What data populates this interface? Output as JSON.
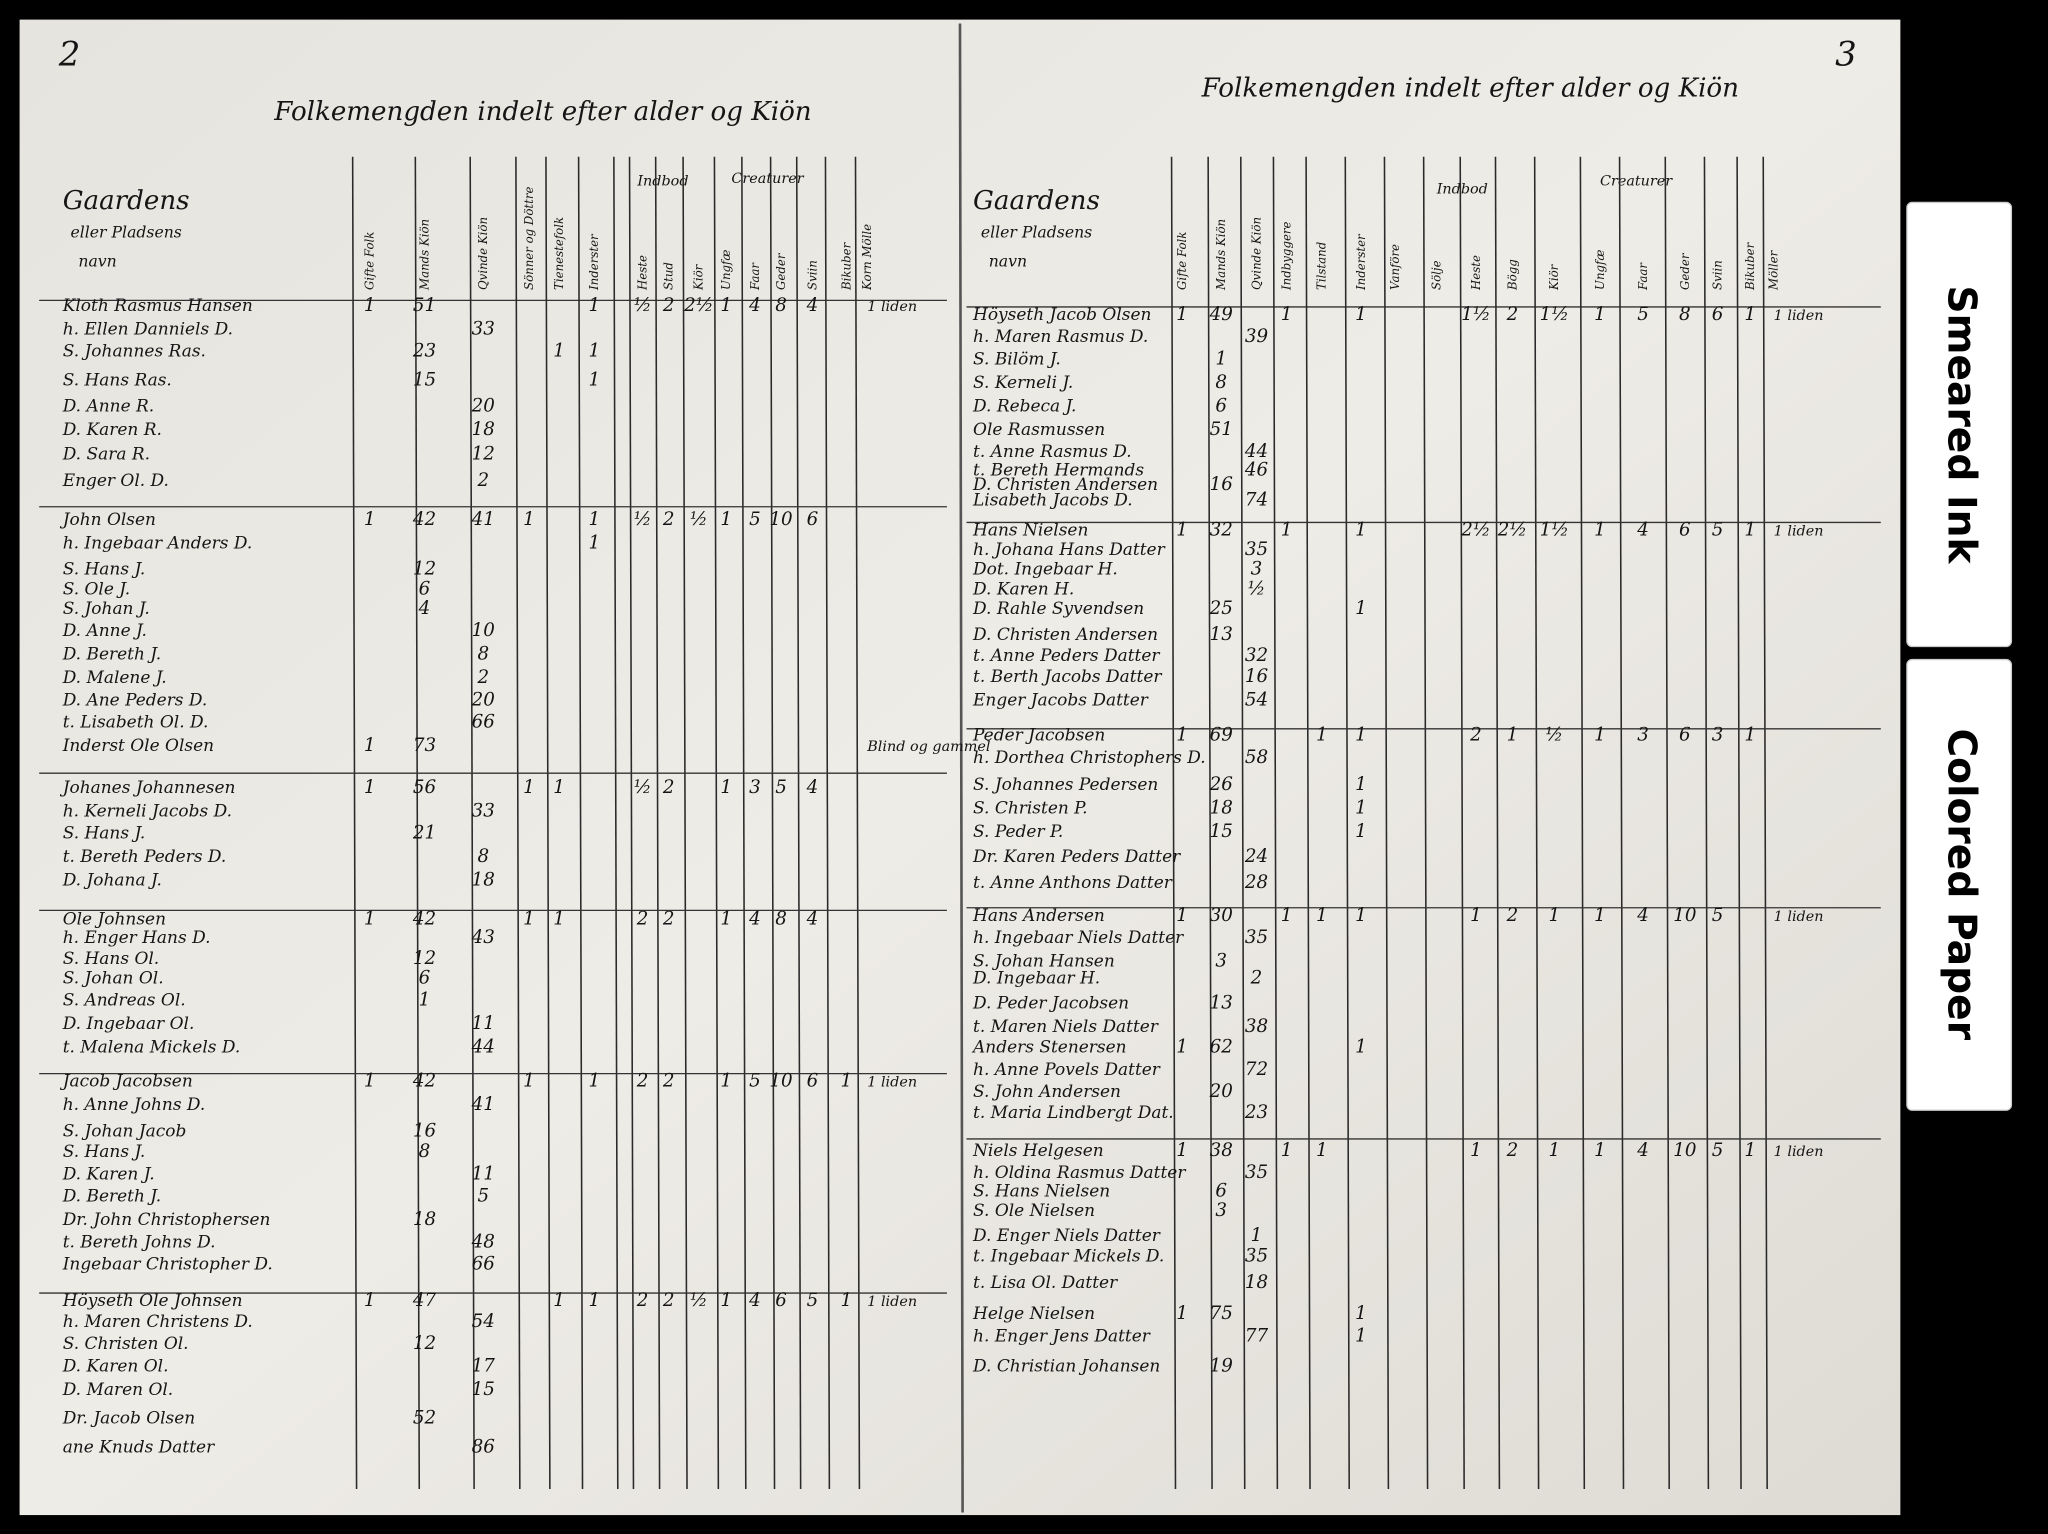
{
  "left_page": {
    "page_number": "2",
    "title": "Folkemengden indelt efter alder og Kiön",
    "groups": {
      "indbod": "Indbod",
      "creaturer": "Creaturer"
    },
    "columns": {
      "name": [
        "Gaardens",
        "eller Pladsens",
        "navn"
      ],
      "g": "Gifte Folk",
      "m": "Mands Kiön",
      "q": "Qvinde Kiön",
      "s": "Sönner og Döttre",
      "t": "Tienestefolk",
      "i": "Inderster",
      "he": "Heste",
      "st": "Stud",
      "ki": "Kiör",
      "un": "Ungfæ",
      "fa": "Faar",
      "ge": "Geder",
      "sv": "Sviin",
      "bi": "Bikuber",
      "mo": "Korn Mölle"
    },
    "rows": [
      {
        "name": "Kloth Rasmus Hansen",
        "g": "1",
        "m": "51",
        "i": "1",
        "he": "½",
        "st": "2",
        "ki": "2½",
        "un": "1",
        "fa": "4",
        "ge": "8",
        "sv": "4",
        "mo": "1 liden"
      },
      {
        "name": "h. Ellen Danniels D.",
        "q": "33"
      },
      {
        "name": "S. Johannes Ras.",
        "m": "23",
        "t": "1",
        "i": "1"
      },
      {
        "name": "S. Hans Ras.",
        "m": "15",
        "i": "1"
      },
      {
        "name": "D. Anne R.",
        "q": "20"
      },
      {
        "name": "D. Karen R.",
        "q": "18"
      },
      {
        "name": "D. Sara R.",
        "q": "12"
      },
      {
        "name": "Enger Ol. D.",
        "q": "2"
      },
      {
        "name": "John Olsen",
        "g": "1",
        "m": "42",
        "q": "41",
        "s": "1",
        "i": "1",
        "he": "½",
        "st": "2",
        "ki": "½",
        "un": "1",
        "fa": "5",
        "ge": "10",
        "sv": "6"
      },
      {
        "name": "h. Ingebaar Anders D.",
        "i": "1"
      },
      {
        "name": "S. Hans J.",
        "m": "12"
      },
      {
        "name": "S. Ole J.",
        "m": "6"
      },
      {
        "name": "S. Johan J.",
        "m": "4"
      },
      {
        "name": "D. Anne J.",
        "q": "10"
      },
      {
        "name": "D. Bereth J.",
        "q": "8"
      },
      {
        "name": "D. Malene J.",
        "q": "2"
      },
      {
        "name": "D. Ane Peders D.",
        "q": "20"
      },
      {
        "name": "t. Lisabeth Ol. D.",
        "q": "66"
      },
      {
        "name": "Inderst Ole Olsen",
        "g": "1",
        "m": "73",
        "mo": "Blind og gammel"
      },
      {
        "name": "Johanes Johannesen",
        "g": "1",
        "m": "56",
        "s": "1",
        "t": "1",
        "he": "½",
        "st": "2",
        "un": "1",
        "fa": "3",
        "ge": "5",
        "sv": "4"
      },
      {
        "name": "h. Kerneli Jacobs D.",
        "q": "33"
      },
      {
        "name": "S. Hans J.",
        "m": "21"
      },
      {
        "name": "t. Bereth Peders D.",
        "q": "8"
      },
      {
        "name": "D. Johana J.",
        "q": "18"
      },
      {
        "name": "Ole Johnsen",
        "g": "1",
        "m": "42",
        "s": "1",
        "t": "1",
        "he": "2",
        "st": "2",
        "un": "1",
        "fa": "4",
        "ge": "8",
        "sv": "4"
      },
      {
        "name": "h. Enger Hans D.",
        "q": "43"
      },
      {
        "name": "S. Hans Ol.",
        "m": "12"
      },
      {
        "name": "S. Johan Ol.",
        "m": "6"
      },
      {
        "name": "S. Andreas Ol.",
        "m": "1"
      },
      {
        "name": "D. Ingebaar Ol.",
        "q": "11"
      },
      {
        "name": "t. Malena Mickels D.",
        "q": "44"
      },
      {
        "name": "Jacob Jacobsen",
        "g": "1",
        "m": "42",
        "s": "1",
        "i": "1",
        "he": "2",
        "st": "2",
        "un": "1",
        "fa": "5",
        "ge": "10",
        "sv": "6",
        "bi": "1",
        "mo": "1 liden"
      },
      {
        "name": "h. Anne Johns D.",
        "q": "41"
      },
      {
        "name": "S. Johan Jacob",
        "m": "16"
      },
      {
        "name": "S. Hans J.",
        "m": "8"
      },
      {
        "name": "D. Karen J.",
        "q": "11"
      },
      {
        "name": "D. Bereth J.",
        "q": "5"
      },
      {
        "name": "Dr. John Christophersen",
        "m": "18"
      },
      {
        "name": "t. Bereth Johns D.",
        "q": "48"
      },
      {
        "name": "Ingebaar Christopher D.",
        "q": "66"
      },
      {
        "name": "Höyseth Ole Johnsen",
        "g": "1",
        "m": "47",
        "t": "1",
        "i": "1",
        "he": "2",
        "st": "2",
        "ki": "½",
        "un": "1",
        "fa": "4",
        "ge": "6",
        "sv": "5",
        "bi": "1",
        "mo": "1 liden"
      },
      {
        "name": "h. Maren Christens D.",
        "q": "54"
      },
      {
        "name": "S. Christen Ol.",
        "m": "12"
      },
      {
        "name": "D. Karen Ol.",
        "q": "17"
      },
      {
        "name": "D. Maren Ol.",
        "q": "15"
      },
      {
        "name": "Dr. Jacob Olsen",
        "m": "52"
      },
      {
        "name": "ane Knuds Datter",
        "q": "86"
      }
    ]
  },
  "right_page": {
    "page_number": "3",
    "title": "Folkemengden indelt efter alder og Kiön",
    "groups": {
      "indbod": "Indbod",
      "creaturer": "Creaturer"
    },
    "columns": {
      "name": [
        "Gaardens",
        "eller Pladsens",
        "navn"
      ],
      "g": "Gifte Folk",
      "m": "Mands Kiön",
      "q": "Qvinde Kiön",
      "s": "Indbyggere",
      "t": "Tilstand",
      "i": "Inderster",
      "v": "Vanföre",
      "so": "Sölje",
      "he": "Heste",
      "st": "Bögg",
      "ki": "Kiör",
      "un": "Ungfæ",
      "fa": "Faar",
      "ge": "Geder",
      "sv": "Sviin",
      "bi": "Bikuber",
      "mo": "Möller"
    },
    "rows": [
      {
        "name": "Höyseth Jacob Olsen",
        "g": "1",
        "m": "49",
        "s": "1",
        "i": "1",
        "he": "1½",
        "st": "2",
        "ki": "1½",
        "un": "1",
        "fa": "5",
        "ge": "8",
        "sv": "6",
        "bi": "1",
        "mo": "1 liden"
      },
      {
        "name": "h. Maren Rasmus D.",
        "q": "39"
      },
      {
        "name": "S. Bilöm J.",
        "m": "1"
      },
      {
        "name": "S. Kerneli J.",
        "m": "8"
      },
      {
        "name": "D. Rebeca J.",
        "m": "6"
      },
      {
        "name": "Ole Rasmussen",
        "m": "51"
      },
      {
        "name": "t. Anne Rasmus D.",
        "q": "44"
      },
      {
        "name": "t. Bereth Hermands",
        "q": "46"
      },
      {
        "name": "D. Christen Andersen",
        "m": "16"
      },
      {
        "name": "Lisabeth Jacobs D.",
        "q": "74"
      },
      {
        "name": "Hans Nielsen",
        "g": "1",
        "m": "32",
        "s": "1",
        "i": "1",
        "he": "2½",
        "st": "2½",
        "ki": "1½",
        "un": "1",
        "fa": "4",
        "ge": "6",
        "sv": "5",
        "bi": "1",
        "mo": "1 liden"
      },
      {
        "name": "h. Johana Hans Datter",
        "q": "35"
      },
      {
        "name": "Dot. Ingebaar H.",
        "q": "3"
      },
      {
        "name": "D. Karen H.",
        "q": "½"
      },
      {
        "name": "D. Rahle Syvendsen",
        "m": "25",
        "i": "1"
      },
      {
        "name": "D. Christen Andersen",
        "m": "13"
      },
      {
        "name": "t. Anne Peders Datter",
        "q": "32"
      },
      {
        "name": "t. Berth Jacobs Datter",
        "q": "16"
      },
      {
        "name": "Enger Jacobs Datter",
        "q": "54"
      },
      {
        "name": "Peder Jacobsen",
        "g": "1",
        "m": "69",
        "t": "1",
        "i": "1",
        "he": "2",
        "st": "1",
        "ki": "½",
        "un": "1",
        "fa": "3",
        "ge": "6",
        "sv": "3",
        "bi": "1"
      },
      {
        "name": "h. Dorthea Christophers D.",
        "q": "58"
      },
      {
        "name": "S. Johannes Pedersen",
        "m": "26",
        "i": "1"
      },
      {
        "name": "S. Christen P.",
        "m": "18",
        "i": "1"
      },
      {
        "name": "S. Peder P.",
        "m": "15",
        "i": "1"
      },
      {
        "name": "Dr. Karen Peders Datter",
        "q": "24"
      },
      {
        "name": "t. Anne Anthons Datter",
        "q": "28"
      },
      {
        "name": "Hans Andersen",
        "g": "1",
        "m": "30",
        "s": "1",
        "t": "1",
        "i": "1",
        "he": "1",
        "st": "2",
        "ki": "1",
        "un": "1",
        "fa": "4",
        "ge": "10",
        "sv": "5",
        "mo": "1 liden"
      },
      {
        "name": "h. Ingebaar Niels Datter",
        "q": "35"
      },
      {
        "name": "S. Johan Hansen",
        "m": "3"
      },
      {
        "name": "D. Ingebaar H.",
        "q": "2"
      },
      {
        "name": "D. Peder Jacobsen",
        "m": "13"
      },
      {
        "name": "t. Maren Niels Datter",
        "q": "38"
      },
      {
        "name": "Anders Stenersen",
        "g": "1",
        "m": "62",
        "i": "1"
      },
      {
        "name": "h. Anne Povels Datter",
        "q": "72"
      },
      {
        "name": "S. John Andersen",
        "m": "20"
      },
      {
        "name": "t. Maria Lindbergt Dat.",
        "q": "23"
      },
      {
        "name": "Niels Helgesen",
        "g": "1",
        "m": "38",
        "s": "1",
        "t": "1",
        "he": "1",
        "st": "2",
        "ki": "1",
        "un": "1",
        "fa": "4",
        "ge": "10",
        "sv": "5",
        "bi": "1",
        "mo": "1 liden"
      },
      {
        "name": "h. Oldina Rasmus Datter",
        "q": "35"
      },
      {
        "name": "S. Hans Nielsen",
        "m": "6"
      },
      {
        "name": "S. Ole Nielsen",
        "m": "3"
      },
      {
        "name": "D. Enger Niels Datter",
        "q": "1"
      },
      {
        "name": "t. Ingebaar Mickels D.",
        "q": "35"
      },
      {
        "name": "t. Lisa Ol. Datter",
        "q": "18"
      },
      {
        "name": "Helge Nielsen",
        "g": "1",
        "m": "75",
        "i": "1"
      },
      {
        "name": "h. Enger Jens Datter",
        "q": "77",
        "i": "1"
      },
      {
        "name": "D. Christian Johansen",
        "m": "19"
      }
    ]
  },
  "tabs": [
    "Smeared Ink",
    "Colored Paper"
  ]
}
